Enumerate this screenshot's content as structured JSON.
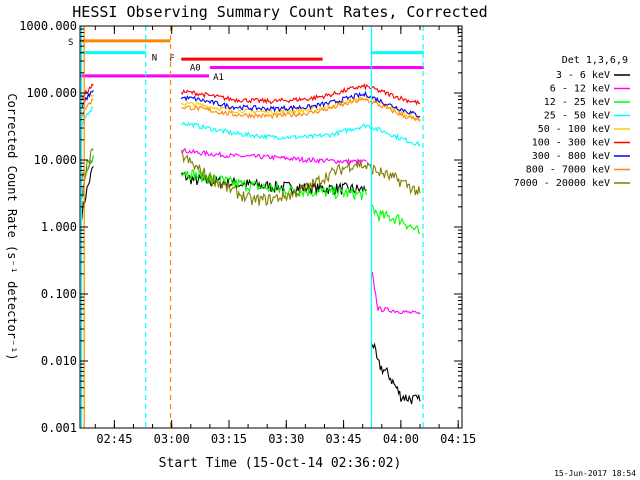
{
  "chart_data": {
    "type": "line",
    "title": "HESSI Observing Summary Count Rates, Corrected",
    "xlabel": "Start Time (15-Oct-14 02:36:02)",
    "ylabel": "Corrected Count Rate (s⁻¹ detector⁻¹)",
    "yscale": "log",
    "ylim": [
      0.001,
      1000
    ],
    "xlim_minutes": [
      0,
      100
    ],
    "x_ticks": [
      {
        "m": 9,
        "label": "02:45"
      },
      {
        "m": 24,
        "label": "03:00"
      },
      {
        "m": 39,
        "label": "03:15"
      },
      {
        "m": 54,
        "label": "03:30"
      },
      {
        "m": 69,
        "label": "03:45"
      },
      {
        "m": 84,
        "label": "04:00"
      },
      {
        "m": 99,
        "label": "04:15"
      }
    ],
    "y_ticks": [
      {
        "v": 0.001,
        "label": "0.001"
      },
      {
        "v": 0.01,
        "label": "0.010"
      },
      {
        "v": 0.1,
        "label": "0.100"
      },
      {
        "v": 1,
        "label": "1.000"
      },
      {
        "v": 10,
        "label": "10.000"
      },
      {
        "v": 100,
        "label": "100.000"
      },
      {
        "v": 1000,
        "label": "1000.000"
      }
    ],
    "legend_title": "Det 1,3,6,9",
    "legend_placement": "right",
    "series": [
      {
        "name": "3 - 6 keV",
        "color": "#000000",
        "segments": [
          [
            [
              0.5,
              1.6
            ],
            [
              1.5,
              3
            ],
            [
              2.5,
              5
            ],
            [
              3.5,
              8
            ]
          ],
          [
            [
              26.5,
              6
            ],
            [
              30,
              5
            ],
            [
              40,
              4.5
            ],
            [
              50,
              4
            ],
            [
              60,
              3.8
            ],
            [
              70,
              3.7
            ],
            [
              75,
              3.6
            ]
          ],
          [
            [
              76.5,
              0.02
            ],
            [
              78,
              0.009
            ],
            [
              81,
              0.006
            ],
            [
              84,
              0.003
            ],
            [
              89,
              0.0025
            ]
          ]
        ]
      },
      {
        "name": "6 - 12 keV",
        "color": "#ff00ff",
        "segments": [
          [
            [
              0.5,
              3
            ],
            [
              1.5,
              6
            ],
            [
              2.5,
              9
            ],
            [
              3.5,
              11
            ]
          ],
          [
            [
              26.5,
              14
            ],
            [
              30,
              13
            ],
            [
              40,
              11.5
            ],
            [
              50,
              11
            ],
            [
              60,
              10
            ],
            [
              70,
              9.5
            ],
            [
              75,
              9.5
            ]
          ],
          [
            [
              76.5,
              0.2
            ],
            [
              78,
              0.06
            ],
            [
              84,
              0.055
            ],
            [
              89,
              0.05
            ]
          ]
        ]
      },
      {
        "name": "12 - 25 keV",
        "color": "#00ff00",
        "segments": [
          [
            [
              0.5,
              3
            ],
            [
              1.5,
              6
            ],
            [
              2.5,
              9
            ],
            [
              3.5,
              12
            ]
          ],
          [
            [
              26.5,
              7
            ],
            [
              30,
              6
            ],
            [
              40,
              4.5
            ],
            [
              50,
              3.8
            ],
            [
              60,
              3.4
            ],
            [
              70,
              3.2
            ],
            [
              75,
              3
            ]
          ],
          [
            [
              76.5,
              2
            ],
            [
              78,
              1.5
            ],
            [
              84,
              1.3
            ],
            [
              89,
              0.8
            ]
          ]
        ]
      },
      {
        "name": "25 - 50 keV",
        "color": "#00ffff",
        "segments": [
          [
            [
              0.5,
              30
            ],
            [
              1.5,
              45
            ],
            [
              2.5,
              55
            ],
            [
              3.5,
              60
            ]
          ],
          [
            [
              26.5,
              36
            ],
            [
              30,
              33
            ],
            [
              40,
              25
            ],
            [
              50,
              22
            ],
            [
              60,
              22
            ],
            [
              66,
              24
            ],
            [
              72,
              30
            ],
            [
              75,
              33
            ],
            [
              80,
              26
            ],
            [
              85,
              20
            ],
            [
              89,
              17
            ]
          ]
        ]
      },
      {
        "name": "50 - 100 keV",
        "color": "#ffcc00",
        "segments": [
          [
            [
              0.5,
              60
            ],
            [
              1.5,
              80
            ],
            [
              2.5,
              90
            ],
            [
              3.5,
              95
            ]
          ],
          [
            [
              26.5,
              70
            ],
            [
              30,
              68
            ],
            [
              40,
              55
            ],
            [
              50,
              52
            ],
            [
              60,
              56
            ],
            [
              66,
              65
            ],
            [
              72,
              80
            ],
            [
              75,
              85
            ],
            [
              80,
              65
            ],
            [
              85,
              50
            ],
            [
              89,
              40
            ]
          ]
        ]
      },
      {
        "name": "100 - 300 keV",
        "color": "#ff0000",
        "segments": [
          [
            [
              0.5,
              80
            ],
            [
              1.5,
              100
            ],
            [
              2.5,
              115
            ],
            [
              3.5,
              130
            ]
          ],
          [
            [
              26.5,
              105
            ],
            [
              30,
              100
            ],
            [
              40,
              80
            ],
            [
              50,
              75
            ],
            [
              60,
              82
            ],
            [
              66,
              95
            ],
            [
              72,
              120
            ],
            [
              75,
              125
            ],
            [
              80,
              100
            ],
            [
              85,
              80
            ],
            [
              89,
              70
            ]
          ]
        ]
      },
      {
        "name": "300 - 800 keV",
        "color": "#0000ff",
        "segments": [
          [
            [
              0.5,
              60
            ],
            [
              1.5,
              80
            ],
            [
              2.5,
              95
            ],
            [
              3.5,
              110
            ]
          ],
          [
            [
              26.5,
              85
            ],
            [
              30,
              82
            ],
            [
              40,
              62
            ],
            [
              50,
              58
            ],
            [
              60,
              62
            ],
            [
              66,
              72
            ],
            [
              72,
              90
            ],
            [
              75,
              95
            ],
            [
              80,
              70
            ],
            [
              85,
              55
            ],
            [
              89,
              45
            ]
          ]
        ]
      },
      {
        "name": "800 - 7000 keV",
        "color": "#ff8800",
        "segments": [
          [
            [
              0.5,
              45
            ],
            [
              1.5,
              60
            ],
            [
              2.5,
              70
            ],
            [
              3.5,
              80
            ]
          ],
          [
            [
              26.5,
              62
            ],
            [
              30,
              60
            ],
            [
              40,
              48
            ],
            [
              50,
              45
            ],
            [
              60,
              50
            ],
            [
              66,
              60
            ],
            [
              72,
              75
            ],
            [
              75,
              80
            ],
            [
              80,
              60
            ],
            [
              85,
              45
            ],
            [
              89,
              38
            ]
          ]
        ]
      },
      {
        "name": "7000 - 20000 keV",
        "color": "#808000",
        "segments": [
          [
            [
              0.5,
              5
            ],
            [
              1.5,
              7
            ],
            [
              2.5,
              10
            ],
            [
              3.5,
              14
            ]
          ],
          [
            [
              26.5,
              12
            ],
            [
              30,
              8
            ],
            [
              35,
              5
            ],
            [
              40,
              3.5
            ],
            [
              45,
              2.5
            ],
            [
              50,
              2.6
            ],
            [
              55,
              3
            ],
            [
              60,
              4
            ],
            [
              65,
              6
            ],
            [
              70,
              8
            ],
            [
              72,
              9
            ],
            [
              75,
              8
            ],
            [
              80,
              6
            ],
            [
              85,
              4.5
            ],
            [
              89,
              3.2
            ]
          ]
        ]
      }
    ],
    "flags": [
      {
        "label": "S",
        "color": "#ff8800",
        "m0": 0,
        "m1": 23.7,
        "v": 600
      },
      {
        "label": "N",
        "color": "#00ffff",
        "m0": 0,
        "m1": 17.2,
        "v": 400
      },
      {
        "label": "F",
        "color": "#ff0000",
        "m0": 26.5,
        "m1": 63.5,
        "v": 320
      },
      {
        "label": "A0",
        "color": "#ff00ff",
        "m0": 34,
        "m1": 90,
        "v": 240
      },
      {
        "label": "A1",
        "color": "#ff00ff",
        "m0": 0,
        "m1": 33.8,
        "v": 180
      },
      {
        "label": "",
        "color": "#00ffff",
        "m0": 76.3,
        "m1": 90,
        "v": 400
      }
    ],
    "vlines": [
      {
        "m": 0.4,
        "color": "#00ffff",
        "dashed": false
      },
      {
        "m": 1.1,
        "color": "#ff8800",
        "dashed": false
      },
      {
        "m": 17.2,
        "color": "#00ffff",
        "dashed": true
      },
      {
        "m": 23.7,
        "color": "#ff8800",
        "dashed": true
      },
      {
        "m": 76.3,
        "color": "#00ffff",
        "dashed": false
      },
      {
        "m": 89.8,
        "color": "#00ffff",
        "dashed": true
      }
    ]
  },
  "footer_date": "15-Jun-2017 18:54"
}
